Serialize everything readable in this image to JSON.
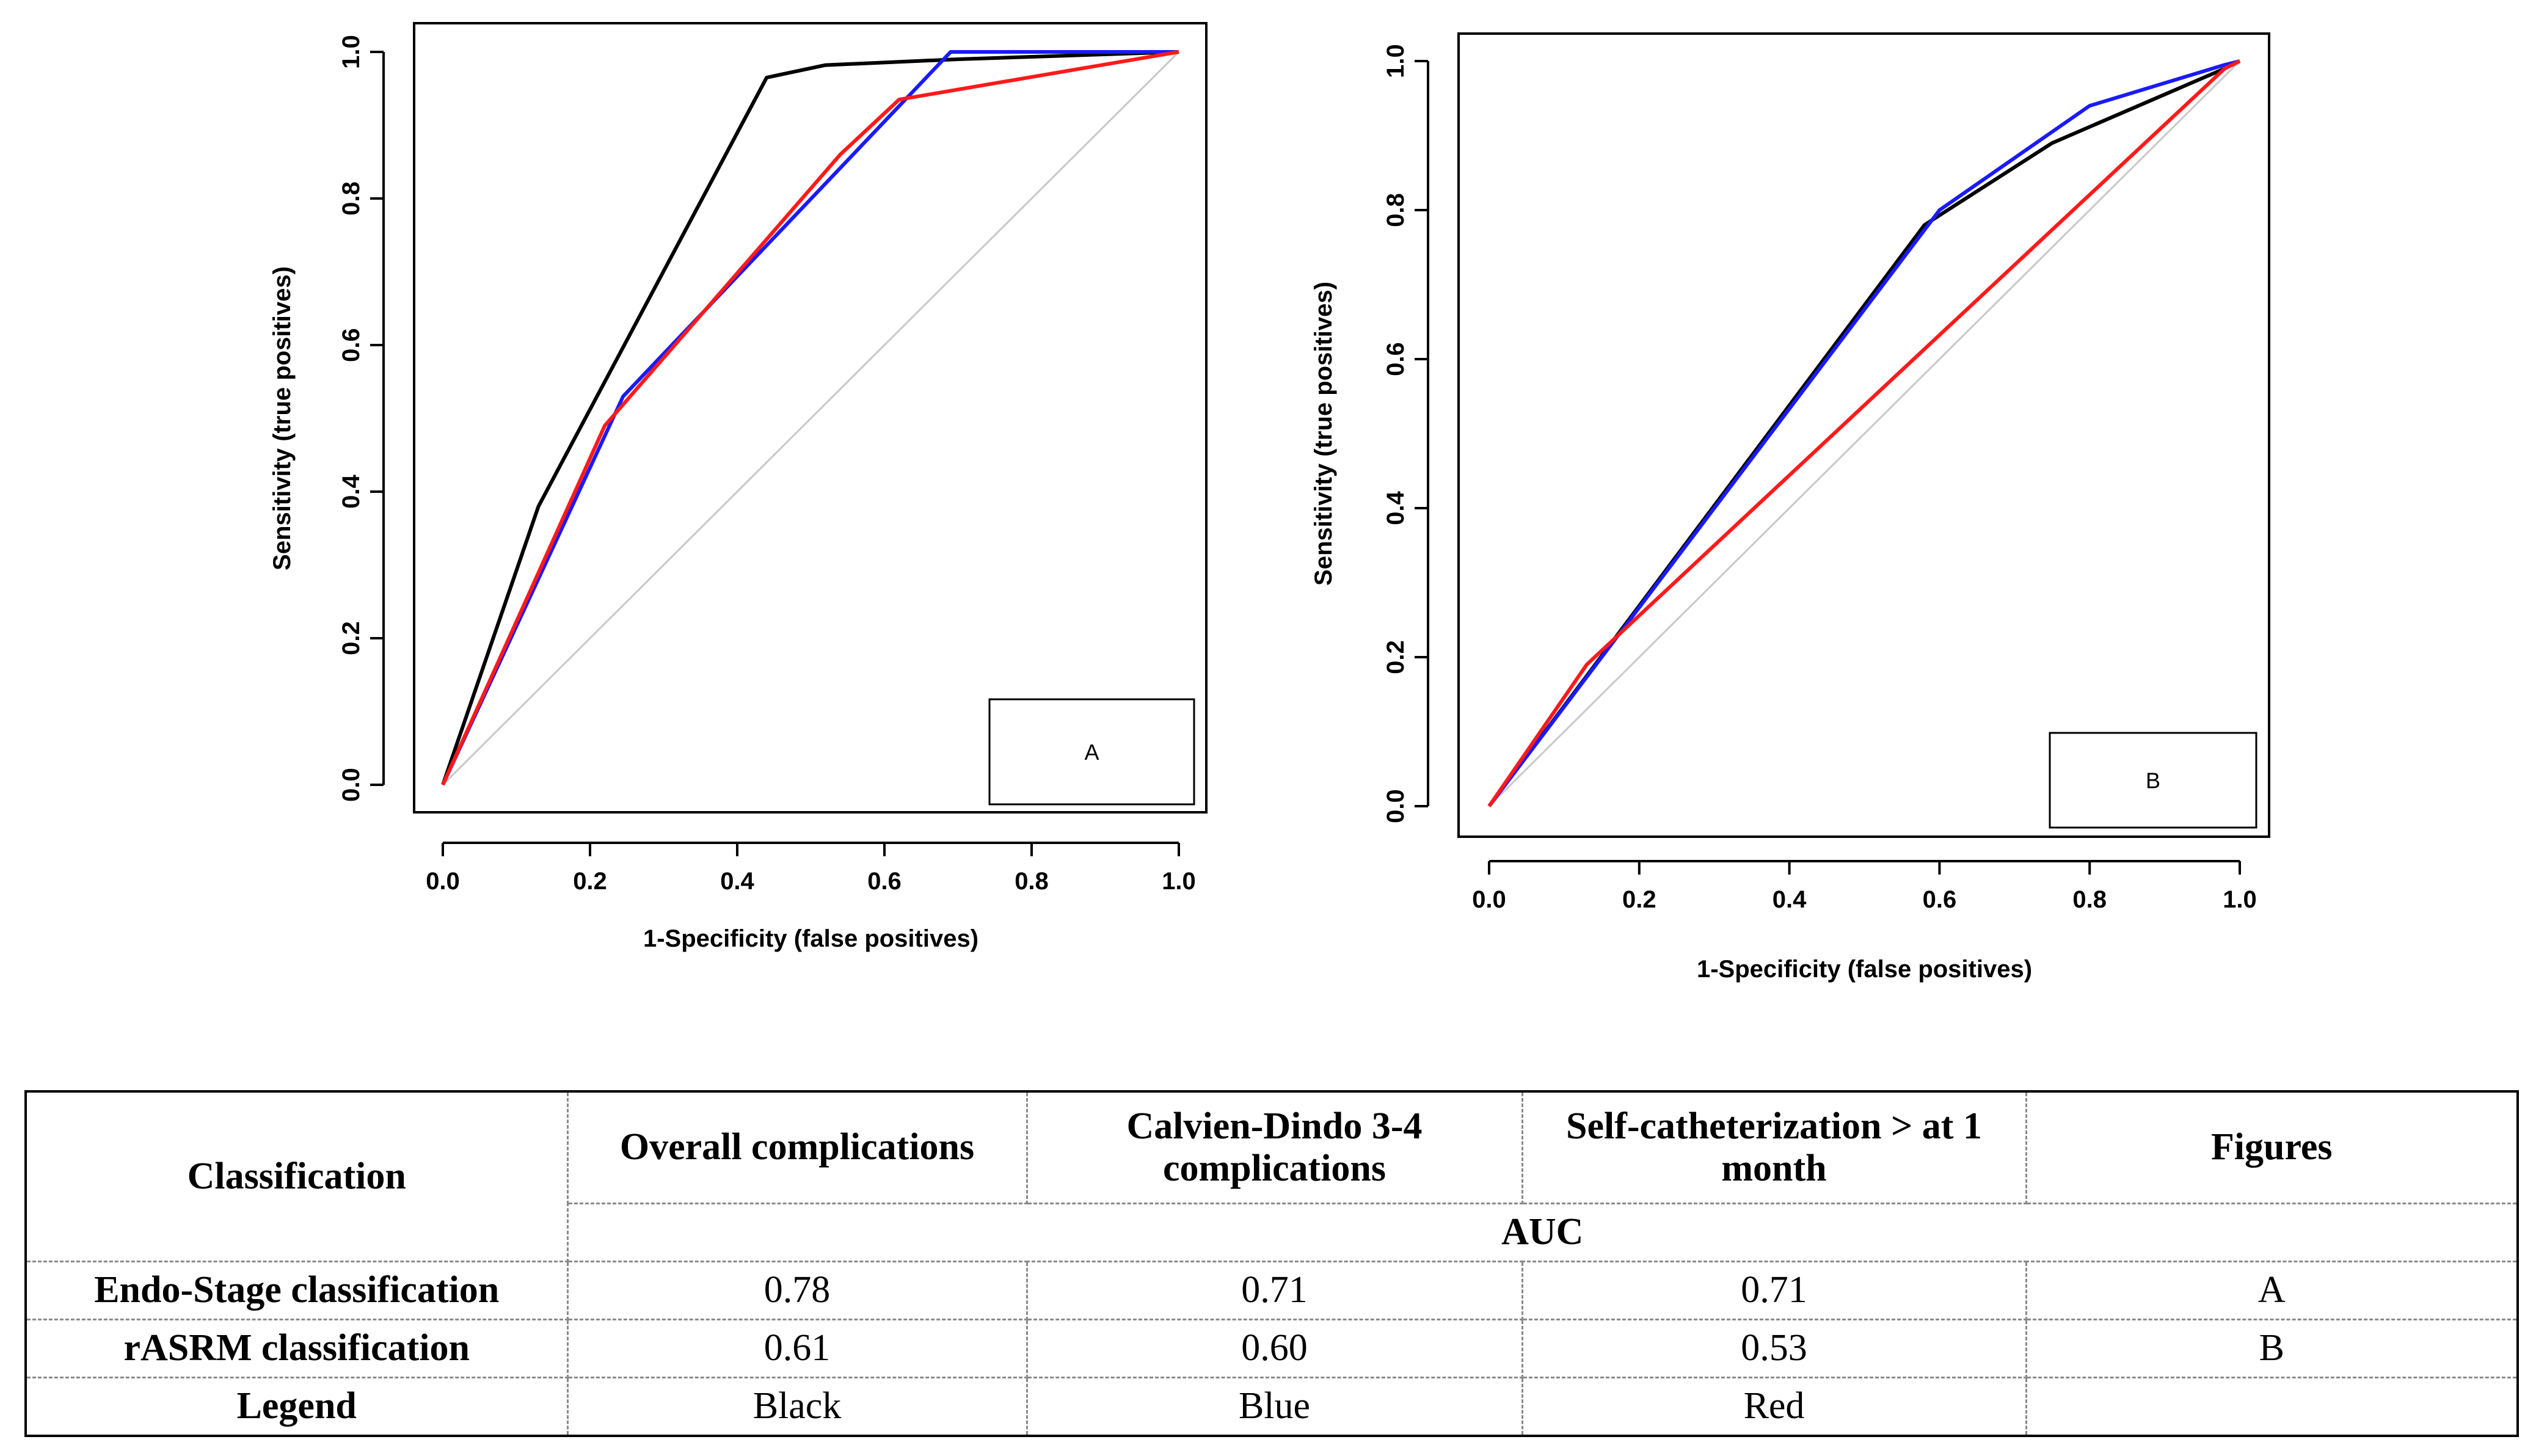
{
  "charts_meta": {
    "axis_ticks": [
      "0.0",
      "0.2",
      "0.4",
      "0.6",
      "0.8",
      "1.0"
    ],
    "colors": {
      "black": "#000000",
      "blue": "#1a1aff",
      "red": "#ff1a1a",
      "diagonal": "#c8c8c8"
    }
  },
  "chart_data": [
    {
      "type": "line",
      "title": "",
      "xlabel": "1-Specificity (false positives)",
      "ylabel": "Sensitivity (true positives)",
      "xlim": [
        0,
        1
      ],
      "ylim": [
        0,
        1
      ],
      "legend_label": "A",
      "legend_placement": "bottom-right",
      "series": [
        {
          "color": "#000000",
          "x": [
            0,
            0.13,
            0.44,
            0.52,
            0.7,
            1.0
          ],
          "y": [
            0,
            0.38,
            0.965,
            0.982,
            0.99,
            1.0
          ]
        },
        {
          "color": "#1a1aff",
          "x": [
            0,
            0.245,
            0.69,
            0.97,
            1.0
          ],
          "y": [
            0,
            0.53,
            1.0,
            1.0,
            1.0
          ]
        },
        {
          "color": "#ff1a1a",
          "x": [
            0,
            0.22,
            0.54,
            0.62,
            1.0
          ],
          "y": [
            0,
            0.49,
            0.86,
            0.935,
            1.0
          ]
        },
        {
          "color": "#c8c8c8",
          "x": [
            0,
            1
          ],
          "y": [
            0,
            1
          ]
        }
      ]
    },
    {
      "type": "line",
      "title": "",
      "xlabel": "1-Specificity (false positives)",
      "ylabel": "Sensitivity (true positives)",
      "xlim": [
        0,
        1
      ],
      "ylim": [
        0,
        1
      ],
      "legend_label": "B",
      "legend_placement": "bottom-right",
      "series": [
        {
          "color": "#000000",
          "x": [
            0,
            0.58,
            0.75,
            0.98,
            1.0
          ],
          "y": [
            0,
            0.78,
            0.89,
            0.99,
            1.0
          ]
        },
        {
          "color": "#1a1aff",
          "x": [
            0,
            0.6,
            0.8,
            0.98,
            1.0
          ],
          "y": [
            0,
            0.8,
            0.94,
            0.995,
            1.0
          ]
        },
        {
          "color": "#ff1a1a",
          "x": [
            0,
            0.13,
            0.98,
            1.0
          ],
          "y": [
            0,
            0.19,
            0.99,
            1.0
          ]
        },
        {
          "color": "#c8c8c8",
          "x": [
            0,
            1
          ],
          "y": [
            0,
            1
          ]
        }
      ]
    }
  ],
  "table": {
    "header_classification": "Classification",
    "col_overall": "Overall complications",
    "col_calvien": "Calvien-Dindo 3-4 complications",
    "col_selfcath": "Self-catheterization > at 1 month",
    "col_figures": "Figures",
    "auc_label": "AUC",
    "rows": [
      {
        "label": "Endo-Stage classification",
        "overall": "0.78",
        "calvien": "0.71",
        "selfcath": "0.71",
        "figures": "A"
      },
      {
        "label": "rASRM classification",
        "overall": "0.61",
        "calvien": "0.60",
        "selfcath": "0.53",
        "figures": "B"
      },
      {
        "label": "Legend",
        "overall": "Black",
        "calvien": "Blue",
        "selfcath": "Red",
        "figures": ""
      }
    ]
  }
}
